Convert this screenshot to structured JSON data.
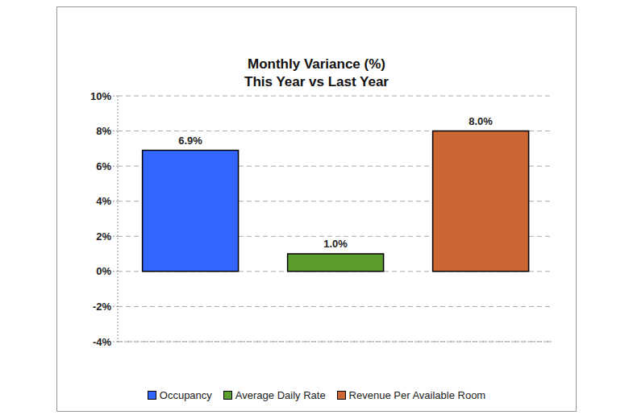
{
  "chart_data": {
    "type": "bar",
    "title": "Monthly Variance (%)",
    "subtitle": "This Year vs Last Year",
    "categories": [
      "Occupancy",
      "Average Daily Rate",
      "Revenue Per Available Room"
    ],
    "values": [
      6.9,
      1.0,
      8.0
    ],
    "value_labels": [
      "6.9%",
      "1.0%",
      "8.0%"
    ],
    "colors": [
      "#3366ff",
      "#5c9e2e",
      "#cc6633"
    ],
    "ylim": [
      -4,
      10
    ],
    "yticks": [
      {
        "value": -4,
        "label": "-4%"
      },
      {
        "value": -2,
        "label": "-2%"
      },
      {
        "value": 0,
        "label": "0%"
      },
      {
        "value": 2,
        "label": "2%"
      },
      {
        "value": 4,
        "label": "4%"
      },
      {
        "value": 6,
        "label": "6%"
      },
      {
        "value": 8,
        "label": "8%"
      },
      {
        "value": 10,
        "label": "10%"
      }
    ],
    "grid": true,
    "legend": "bottom",
    "data_labels": true,
    "tick_labels": "y"
  }
}
